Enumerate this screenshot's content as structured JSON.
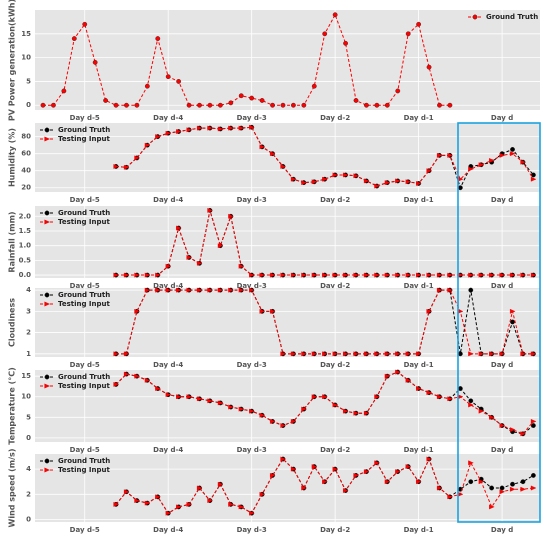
{
  "chart_data": [
    {
      "type": "line",
      "ylabel": "PV Power generation(kWh)",
      "legend": "upper right",
      "xlim": [
        -2.3,
        142.9
      ],
      "xticks": [
        {
          "value": 12,
          "label": "Day d-5"
        },
        {
          "value": 36,
          "label": "Day d-4"
        },
        {
          "value": 60,
          "label": "Day d-3"
        },
        {
          "value": 84,
          "label": "Day d-2"
        },
        {
          "value": 108,
          "label": "Day d-1"
        },
        {
          "value": 132,
          "label": "Day d"
        }
      ],
      "ylim": [
        -1,
        20
      ],
      "yticks": [
        0,
        5,
        10,
        15
      ],
      "x": [
        0,
        3,
        6,
        9,
        12,
        15,
        18,
        21,
        24,
        27,
        30,
        33,
        36,
        39,
        42,
        45,
        48,
        51,
        54,
        57,
        60,
        63,
        66,
        69,
        72,
        75,
        78,
        81,
        84,
        87,
        90,
        93,
        96,
        99,
        102,
        105,
        108,
        111,
        114,
        117
      ],
      "series": [
        {
          "name": "Ground Truth",
          "color": "#ff0000",
          "values": [
            0,
            0,
            3,
            14,
            17,
            9,
            1,
            0,
            0,
            0,
            4,
            14,
            6,
            5,
            0,
            0,
            0,
            0,
            0.5,
            2,
            1.5,
            1,
            0,
            0,
            0,
            0,
            4,
            15,
            19,
            13,
            1,
            0,
            0,
            0,
            3,
            15,
            17,
            8,
            0,
            0
          ]
        }
      ]
    },
    {
      "type": "line",
      "ylabel": "Humidity (%)",
      "legend": "upper left",
      "xlim": [
        -2.3,
        142.9
      ],
      "xticks": [
        {
          "value": 12,
          "label": "Day d-5"
        },
        {
          "value": 36,
          "label": "Day d-4"
        },
        {
          "value": 60,
          "label": "Day d-3"
        },
        {
          "value": 84,
          "label": "Day d-2"
        },
        {
          "value": 108,
          "label": "Day d-1"
        },
        {
          "value": 132,
          "label": "Day d"
        }
      ],
      "ylim": [
        15,
        96
      ],
      "yticks": [
        20,
        40,
        60,
        80
      ],
      "x": [
        21,
        24,
        27,
        30,
        33,
        36,
        39,
        42,
        45,
        48,
        51,
        54,
        57,
        60,
        63,
        66,
        69,
        72,
        75,
        78,
        81,
        84,
        87,
        90,
        93,
        96,
        99,
        102,
        105,
        108,
        111,
        114,
        117,
        120,
        123,
        126,
        129,
        132,
        135,
        138,
        141
      ],
      "series": [
        {
          "name": "Ground Truth",
          "color": "#000000",
          "values": [
            45,
            44,
            55,
            70,
            80,
            84,
            86,
            88,
            90,
            90,
            89,
            90,
            90,
            91,
            68,
            60,
            45,
            30,
            26,
            27,
            30,
            35,
            35,
            34,
            28,
            22,
            26,
            28,
            27,
            25,
            40,
            58,
            58,
            20,
            45,
            47,
            50,
            60,
            65,
            50,
            35
          ]
        },
        {
          "name": "Testing Input",
          "color": "#ff0000",
          "values": [
            45,
            44,
            55,
            70,
            80,
            84,
            86,
            88,
            90,
            90,
            89,
            90,
            90,
            91,
            68,
            60,
            45,
            30,
            26,
            27,
            30,
            35,
            35,
            34,
            28,
            22,
            26,
            28,
            27,
            25,
            40,
            58,
            58,
            30,
            42,
            47,
            52,
            58,
            60,
            50,
            30
          ]
        }
      ]
    },
    {
      "type": "line",
      "ylabel": "Rainfall (mm)",
      "legend": "upper left",
      "xlim": [
        -2.3,
        142.9
      ],
      "xticks": [
        {
          "value": 12,
          "label": "Day d-5"
        },
        {
          "value": 36,
          "label": "Day d-4"
        },
        {
          "value": 60,
          "label": "Day d-3"
        },
        {
          "value": 84,
          "label": "Day d-2"
        },
        {
          "value": 108,
          "label": "Day d-1"
        },
        {
          "value": 132,
          "label": "Day d"
        }
      ],
      "ylim": [
        -0.1,
        2.35
      ],
      "yticks": [
        {
          "value": 0,
          "label": "0.0"
        },
        0.5,
        {
          "value": 1,
          "label": "1.0"
        },
        1.5,
        {
          "value": 2,
          "label": "2.0"
        }
      ],
      "x": [
        21,
        24,
        27,
        30,
        33,
        36,
        39,
        42,
        45,
        48,
        51,
        54,
        57,
        60,
        63,
        66,
        69,
        72,
        75,
        78,
        81,
        84,
        87,
        90,
        93,
        96,
        99,
        102,
        105,
        108,
        111,
        114,
        117,
        120,
        123,
        126,
        129,
        132,
        135,
        138,
        141
      ],
      "series": [
        {
          "name": "Ground Truth",
          "color": "#000000",
          "values": [
            0,
            0,
            0,
            0,
            0,
            0.3,
            1.6,
            0.6,
            0.4,
            2.2,
            1.0,
            2.0,
            0.3,
            0,
            0,
            0,
            0,
            0,
            0,
            0,
            0,
            0,
            0,
            0,
            0,
            0,
            0,
            0,
            0,
            0,
            0,
            0,
            0,
            0,
            0,
            0,
            0,
            0,
            0,
            0,
            0
          ]
        },
        {
          "name": "Testing Input",
          "color": "#ff0000",
          "values": [
            0,
            0,
            0,
            0,
            0,
            0.3,
            1.6,
            0.6,
            0.4,
            2.2,
            1.0,
            2.0,
            0.3,
            0,
            0,
            0,
            0,
            0,
            0,
            0,
            0,
            0,
            0,
            0,
            0,
            0,
            0,
            0,
            0,
            0,
            0,
            0,
            0,
            0,
            0,
            0,
            0,
            0,
            0,
            0,
            0
          ]
        }
      ]
    },
    {
      "type": "line",
      "ylabel": "Cloudiness",
      "legend": "upper left",
      "xlim": [
        -2.3,
        142.9
      ],
      "xticks": [
        {
          "value": 12,
          "label": "Day d-5"
        },
        {
          "value": 36,
          "label": "Day d-4"
        },
        {
          "value": 60,
          "label": "Day d-3"
        },
        {
          "value": 84,
          "label": "Day d-2"
        },
        {
          "value": 108,
          "label": "Day d-1"
        },
        {
          "value": 132,
          "label": "Day d"
        }
      ],
      "ylim": [
        0.85,
        4.1
      ],
      "yticks": [
        1,
        2,
        3,
        4
      ],
      "x": [
        21,
        24,
        27,
        30,
        33,
        36,
        39,
        42,
        45,
        48,
        51,
        54,
        57,
        60,
        63,
        66,
        69,
        72,
        75,
        78,
        81,
        84,
        87,
        90,
        93,
        96,
        99,
        102,
        105,
        108,
        111,
        114,
        117,
        120,
        123,
        126,
        129,
        132,
        135,
        138,
        141
      ],
      "series": [
        {
          "name": "Ground Truth",
          "color": "#000000",
          "values": [
            1,
            1,
            3,
            4,
            4,
            4,
            4,
            4,
            4,
            4,
            4,
            4,
            4,
            4,
            3,
            3,
            1,
            1,
            1,
            1,
            1,
            1,
            1,
            1,
            1,
            1,
            1,
            1,
            1,
            1,
            3,
            4,
            4,
            1,
            4,
            1,
            1,
            1,
            2.5,
            1,
            1
          ]
        },
        {
          "name": "Testing Input",
          "color": "#ff0000",
          "values": [
            1,
            1,
            3,
            4,
            4,
            4,
            4,
            4,
            4,
            4,
            4,
            4,
            4,
            4,
            3,
            3,
            1,
            1,
            1,
            1,
            1,
            1,
            1,
            1,
            1,
            1,
            1,
            1,
            1,
            1,
            3,
            4,
            4,
            3,
            1,
            1,
            1,
            1,
            3,
            1,
            1
          ]
        }
      ]
    },
    {
      "type": "line",
      "ylabel": "Temperature (°C)",
      "legend": "upper left",
      "xlim": [
        -2.3,
        142.9
      ],
      "xticks": [
        {
          "value": 12,
          "label": "Day d-5"
        },
        {
          "value": 36,
          "label": "Day d-4"
        },
        {
          "value": 60,
          "label": "Day d-3"
        },
        {
          "value": 84,
          "label": "Day d-2"
        },
        {
          "value": 108,
          "label": "Day d-1"
        },
        {
          "value": 132,
          "label": "Day d"
        }
      ],
      "ylim": [
        -1,
        16.5
      ],
      "yticks": [
        0,
        5,
        10,
        15
      ],
      "x": [
        21,
        24,
        27,
        30,
        33,
        36,
        39,
        42,
        45,
        48,
        51,
        54,
        57,
        60,
        63,
        66,
        69,
        72,
        75,
        78,
        81,
        84,
        87,
        90,
        93,
        96,
        99,
        102,
        105,
        108,
        111,
        114,
        117,
        120,
        123,
        126,
        129,
        132,
        135,
        138,
        141
      ],
      "series": [
        {
          "name": "Ground Truth",
          "color": "#000000",
          "values": [
            13,
            15.5,
            15,
            14,
            12,
            10.5,
            10,
            10,
            9.5,
            9,
            8.5,
            7.5,
            7,
            6.5,
            5.5,
            4,
            3,
            4,
            7,
            10,
            10,
            8,
            6.5,
            6,
            6,
            10,
            15,
            16,
            14,
            12,
            11,
            10,
            9.5,
            12,
            9,
            7,
            5,
            3,
            1.5,
            1,
            3
          ]
        },
        {
          "name": "Testing Input",
          "color": "#ff0000",
          "values": [
            13,
            15.5,
            15,
            14,
            12,
            10.5,
            10,
            10,
            9.5,
            9,
            8.5,
            7.5,
            7,
            6.5,
            5.5,
            4,
            3,
            4,
            7,
            10,
            10,
            8,
            6.5,
            6,
            6,
            10,
            15,
            16,
            14,
            12,
            11,
            10,
            9.5,
            10,
            8,
            6.5,
            5,
            3,
            2,
            1,
            4
          ]
        }
      ]
    },
    {
      "type": "line",
      "ylabel": "Wind speed (m/s)",
      "legend": "upper left",
      "xlim": [
        -2.3,
        142.9
      ],
      "xticks": [
        {
          "value": 12,
          "label": "Day d-5"
        },
        {
          "value": 36,
          "label": "Day d-4"
        },
        {
          "value": 60,
          "label": "Day d-3"
        },
        {
          "value": 84,
          "label": "Day d-2"
        },
        {
          "value": 108,
          "label": "Day d-1"
        },
        {
          "value": 132,
          "label": "Day d"
        }
      ],
      "ylim": [
        -0.2,
        5.2
      ],
      "yticks": [
        0,
        2,
        4
      ],
      "x": [
        21,
        24,
        27,
        30,
        33,
        36,
        39,
        42,
        45,
        48,
        51,
        54,
        57,
        60,
        63,
        66,
        69,
        72,
        75,
        78,
        81,
        84,
        87,
        90,
        93,
        96,
        99,
        102,
        105,
        108,
        111,
        114,
        117,
        120,
        123,
        126,
        129,
        132,
        135,
        138,
        141
      ],
      "series": [
        {
          "name": "Ground Truth",
          "color": "#000000",
          "values": [
            1.2,
            2.2,
            1.5,
            1.3,
            1.8,
            0.5,
            1.0,
            1.2,
            2.5,
            1.5,
            2.8,
            1.2,
            1.0,
            0.5,
            2.0,
            3.5,
            4.8,
            4.0,
            2.5,
            4.2,
            3.0,
            4.0,
            2.3,
            3.5,
            3.8,
            4.5,
            3.0,
            3.8,
            4.2,
            3.0,
            4.8,
            2.5,
            1.8,
            2.4,
            3.0,
            3.2,
            2.5,
            2.5,
            2.8,
            3.0,
            3.5
          ]
        },
        {
          "name": "Testing Input",
          "color": "#ff0000",
          "values": [
            1.2,
            2.2,
            1.5,
            1.3,
            1.8,
            0.5,
            1.0,
            1.2,
            2.5,
            1.5,
            2.8,
            1.2,
            1.0,
            0.5,
            2.0,
            3.5,
            4.8,
            4.0,
            2.5,
            4.2,
            3.0,
            4.0,
            2.3,
            3.5,
            3.8,
            4.5,
            3.0,
            3.8,
            4.2,
            3.0,
            4.8,
            2.5,
            1.8,
            2.0,
            4.5,
            3.0,
            1.0,
            2.2,
            2.4,
            2.4,
            2.5
          ]
        }
      ]
    }
  ]
}
